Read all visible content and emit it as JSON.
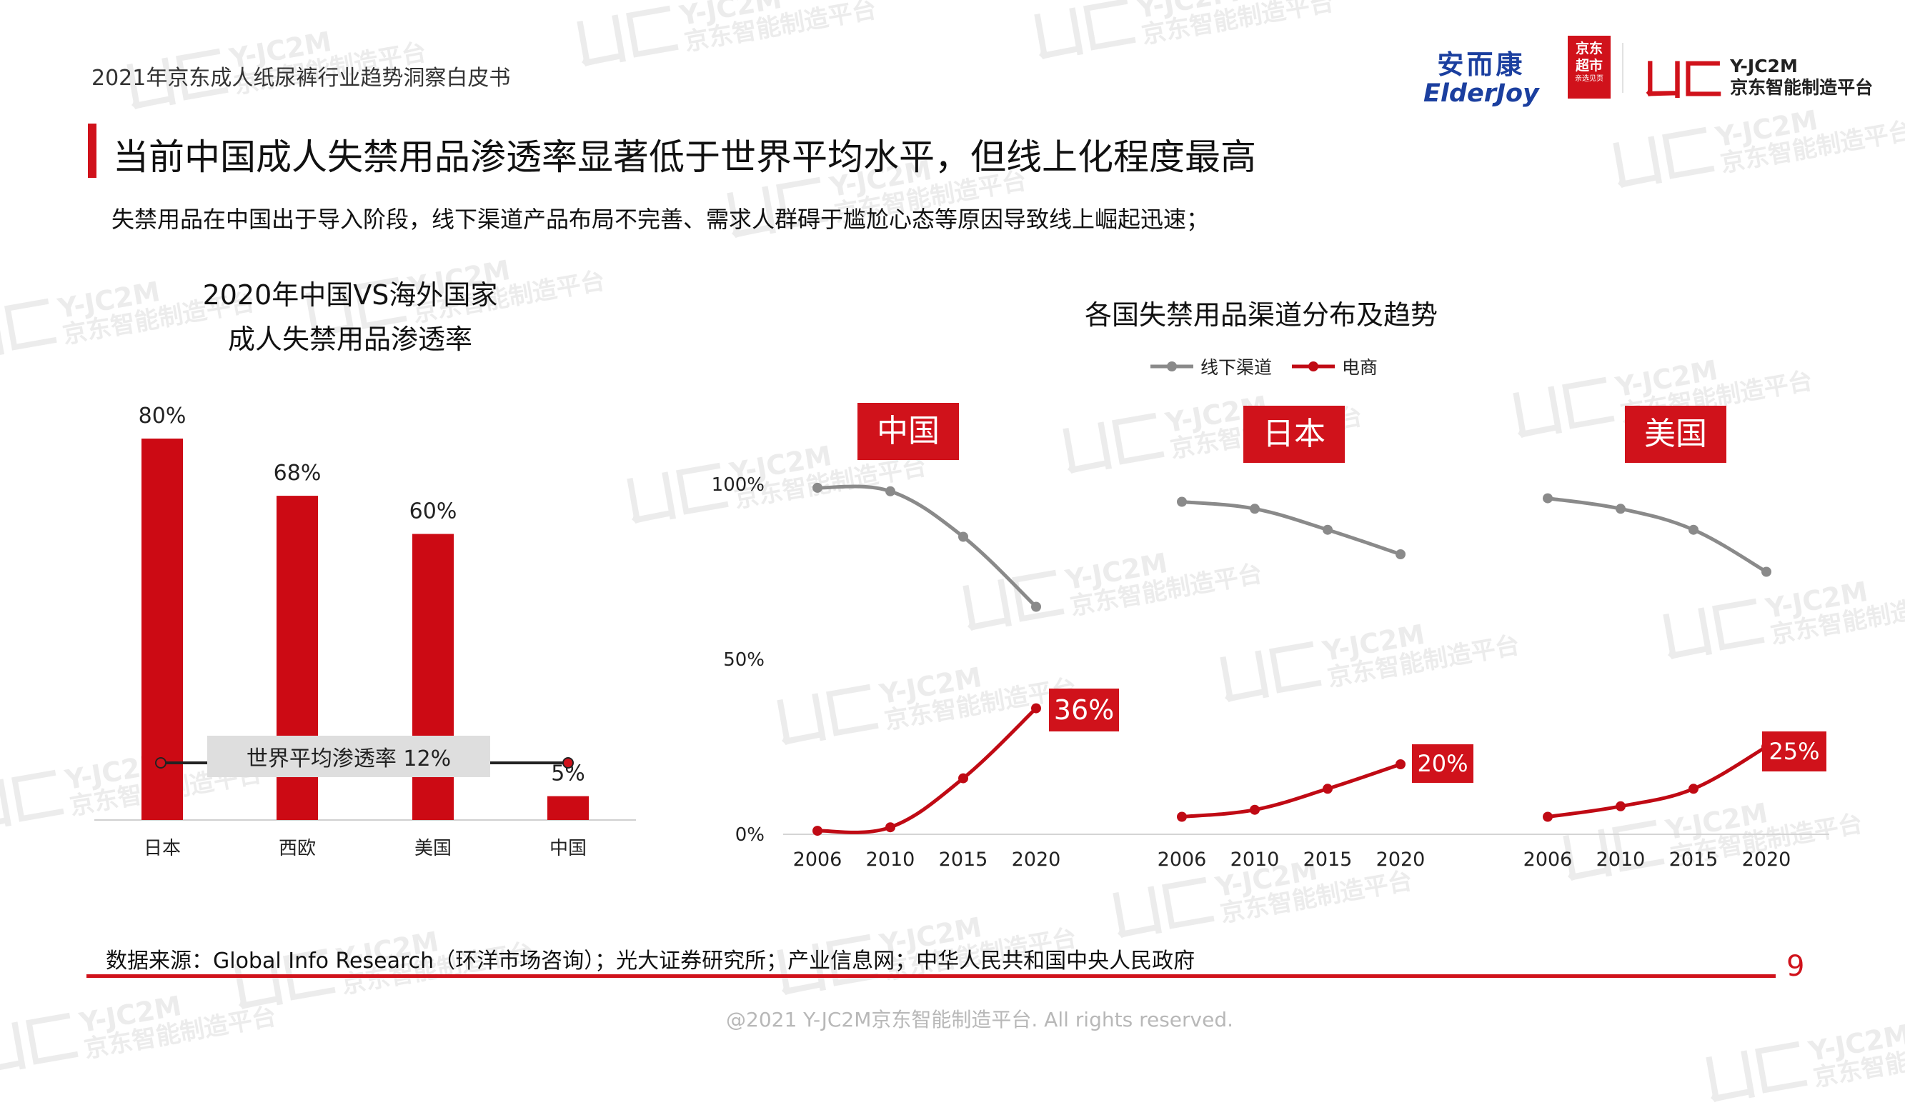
{
  "header": {
    "report_title": "2021年京东成人纸尿裤行业趋势洞察白皮书",
    "main_title": "当前中国成人失禁用品渗透率显著低于世界平均水平，但线上化程度最高",
    "subtitle": "失禁用品在中国出于导入阶段，线下渠道产品布局不完善、需求人群碍于尴尬心态等原因导致线上崛起迅速；"
  },
  "logos": {
    "anerkang_cn": "安而康",
    "anerkang_en": "ElderJoy",
    "jd_line1": "京东",
    "jd_line2": "超市",
    "jd_line3": "亲选见页",
    "yj_line1": "Y-JC2M",
    "yj_line2": "京东智能制造平台",
    "mark_icon": "yjc2m-mark-icon"
  },
  "watermark": {
    "line1": "Y-JC2M",
    "line2": "京东智能制造平台"
  },
  "chart_left": {
    "title_line1": "2020年中国VS海外国家",
    "title_line2": "成人失禁用品渗透率",
    "reference_label": "世界平均渗透率 12%"
  },
  "chart_right": {
    "title": "各国失禁用品渠道分布及趋势",
    "legend_offline": "线下渠道",
    "legend_online": "电商"
  },
  "chart_data": [
    {
      "type": "bar",
      "title": "2020年中国VS海外国家 成人失禁用品渗透率",
      "categories": [
        "日本",
        "西欧",
        "美国",
        "中国"
      ],
      "values": [
        80,
        68,
        60,
        5
      ],
      "value_labels": [
        "80%",
        "68%",
        "60%",
        "5%"
      ],
      "unit": "%",
      "ylim": [
        0,
        80
      ],
      "reference_line": {
        "label": "世界平均渗透率 12%",
        "value": 12
      },
      "color": "#cc0a14",
      "grid": false
    },
    {
      "type": "line",
      "title": "各国失禁用品渠道分布及趋势",
      "x": [
        "2006",
        "2010",
        "2015",
        "2020"
      ],
      "ylim": [
        0,
        100
      ],
      "yticks": [
        "0%",
        "50%",
        "100%"
      ],
      "legend": [
        "线下渠道",
        "电商"
      ],
      "legend_position": "top-center",
      "colors": {
        "线下渠道": "#8a8a8a",
        "电商": "#c00a14"
      },
      "grid": false,
      "panels": [
        {
          "country": "中国",
          "series": [
            {
              "name": "线下渠道",
              "values": [
                99,
                98,
                85,
                65
              ]
            },
            {
              "name": "电商",
              "values": [
                1,
                2,
                16,
                36
              ]
            }
          ],
          "end_label": "36%"
        },
        {
          "country": "日本",
          "series": [
            {
              "name": "线下渠道",
              "values": [
                95,
                93,
                87,
                80
              ]
            },
            {
              "name": "电商",
              "values": [
                5,
                7,
                13,
                20
              ]
            }
          ],
          "end_label": "20%"
        },
        {
          "country": "美国",
          "series": [
            {
              "name": "线下渠道",
              "values": [
                96,
                93,
                87,
                75
              ]
            },
            {
              "name": "电商",
              "values": [
                5,
                8,
                13,
                25
              ]
            }
          ],
          "end_label": "25%"
        }
      ]
    }
  ],
  "footer": {
    "source": "数据来源：Global Info Research（环洋市场咨询）；光大证券研究所；产业信息网；中华人民共和国中央人民政府",
    "page_number": "9",
    "copyright": "@2021 Y-JC2M京东智能制造平台. All rights reserved."
  }
}
